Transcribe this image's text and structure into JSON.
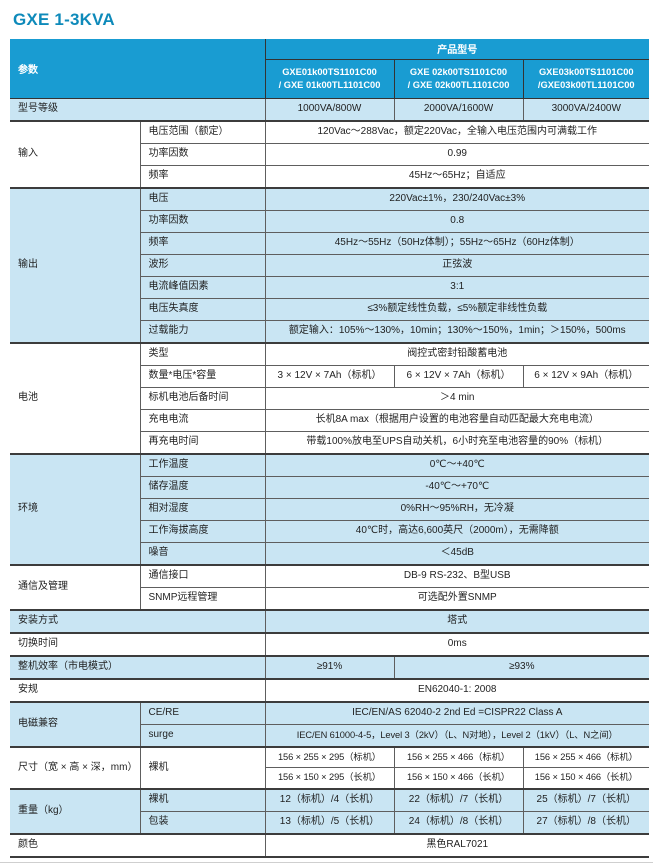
{
  "page_title": "GXE 1-3KVA",
  "colors": {
    "title": "#0e8aba",
    "header_bg": "#199cd2",
    "band_bg": "#c9e5f3",
    "section_border": "#3c3c3c",
    "cell_border": "#5e5e5e"
  },
  "header": {
    "param_label": "参数",
    "product_model_label": "产品型号",
    "models": [
      {
        "line1": "GXE01k00TS1101C00",
        "line2": "/ GXE 01k00TL1101C00"
      },
      {
        "line1": "GXE 02k00TS1101C00",
        "line2": "/ GXE 02k00TL1101C00"
      },
      {
        "line1": "GXE03k00TS1101C00",
        "line2": "/GXE03k00TL1101C00"
      }
    ]
  },
  "sections": {
    "rating": {
      "label": "型号等级",
      "values": [
        "1000VA/800W",
        "2000VA/1600W",
        "3000VA/2400W"
      ]
    },
    "input": {
      "label": "输入",
      "rows": [
        {
          "param": "电压范围（额定）",
          "value": "120Vac～288Vac，额定220Vac，全输入电压范围内可满载工作"
        },
        {
          "param": "功率因数",
          "value": "0.99"
        },
        {
          "param": "频率",
          "value": "45Hz～65Hz；自适应"
        }
      ]
    },
    "output": {
      "label": "输出",
      "rows": [
        {
          "param": "电压",
          "value": "220Vac±1%，230/240Vac±3%"
        },
        {
          "param": "功率因数",
          "value": "0.8"
        },
        {
          "param": "频率",
          "value": "45Hz～55Hz（50Hz体制）；55Hz～65Hz（60Hz体制）"
        },
        {
          "param": "波形",
          "value": "正弦波"
        },
        {
          "param": "电流峰值因素",
          "value": "3:1"
        },
        {
          "param": "电压失真度",
          "value": "≤3%额定线性负载，≤5%额定非线性负载"
        },
        {
          "param": "过载能力",
          "value": "额定输入：105%～130%，10min；130%～150%，1min；＞150%，500ms"
        }
      ]
    },
    "battery": {
      "label": "电池",
      "rows": [
        {
          "param": "类型",
          "value": "阀控式密封铅酸蓄电池"
        },
        {
          "param": "数量*电压*容量",
          "values": [
            "3 × 12V × 7Ah（标机）",
            "6 × 12V × 7Ah（标机）",
            "6 × 12V × 9Ah（标机）"
          ]
        },
        {
          "param": "标机电池后备时间",
          "value": "＞4 min"
        },
        {
          "param": "充电电流",
          "value": "长机8A max（根据用户设置的电池容量自动匹配最大充电电流）"
        },
        {
          "param": "再充电时间",
          "value": "带载100%放电至UPS自动关机，6小时充至电池容量的90%（标机）"
        }
      ]
    },
    "environment": {
      "label": "环境",
      "rows": [
        {
          "param": "工作温度",
          "value": "0℃～+40℃"
        },
        {
          "param": "储存温度",
          "value": "-40℃～+70℃"
        },
        {
          "param": "相对湿度",
          "value": "0%RH～95%RH，无冷凝"
        },
        {
          "param": "工作海拔高度",
          "value": "40℃时，高达6,600英尺（2000m），无需降额"
        },
        {
          "param": "噪音",
          "value": "＜45dB"
        }
      ]
    },
    "comms": {
      "label": "通信及管理",
      "rows": [
        {
          "param": "通信接口",
          "value": "DB-9 RS-232、B型USB"
        },
        {
          "param": "SNMP远程管理",
          "value": "可选配外置SNMP"
        }
      ]
    },
    "install": {
      "label": "安装方式",
      "value": "塔式"
    },
    "transfer": {
      "label": "切换时间",
      "value": "0ms"
    },
    "efficiency": {
      "label": "整机效率（市电模式）",
      "v1": "≥91%",
      "v23": "≥93%"
    },
    "safety": {
      "label": "安规",
      "value": "EN62040-1: 2008"
    },
    "emc": {
      "label": "电磁兼容",
      "rows": [
        {
          "param": "CE/RE",
          "value": "IEC/EN/AS 62040-2 2nd Ed =CISPR22 Class A"
        },
        {
          "param": "surge",
          "value": "IEC/EN 61000-4-5，Level 3（2kV）（L、N对地），Level 2（1kV）（L、N之间）"
        }
      ]
    },
    "dims": {
      "label": "尺寸（宽 × 高 × 深，mm）",
      "param": "裸机",
      "rows": [
        {
          "values": [
            "156 × 255 × 295（标机）",
            "156 × 255 × 466（标机）",
            "156 × 255 × 466（标机）"
          ]
        },
        {
          "values": [
            "156 × 150 × 295（长机）",
            "156 × 150 × 466（长机）",
            "156 × 150 × 466（长机）"
          ]
        }
      ]
    },
    "weight": {
      "label": "重量（kg）",
      "rows": [
        {
          "param": "裸机",
          "values": [
            "12（标机）/4（长机）",
            "22（标机）/7（长机）",
            "25（标机）/7（长机）"
          ]
        },
        {
          "param": "包装",
          "values": [
            "13（标机）/5（长机）",
            "24（标机）/8（长机）",
            "27（标机）/8（长机）"
          ]
        }
      ]
    },
    "colorrow": {
      "label": "颜色",
      "value": "黑色RAL7021"
    }
  }
}
